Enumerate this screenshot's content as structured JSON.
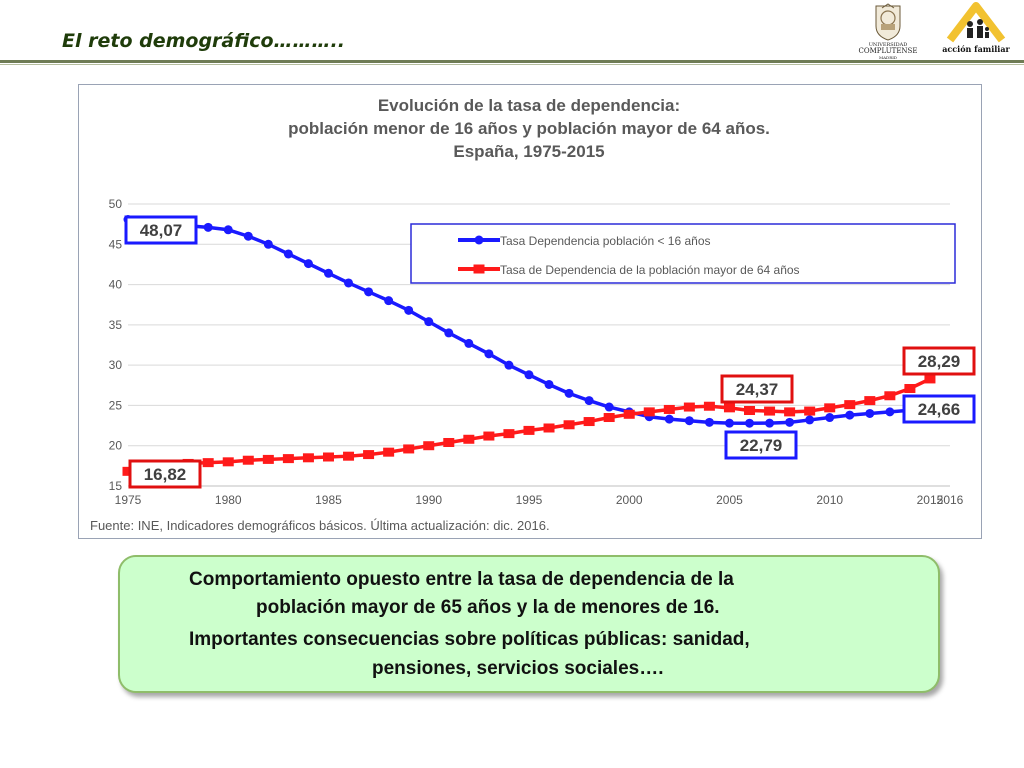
{
  "slide": {
    "title": "El reto demográfico……….."
  },
  "logos": {
    "ucm": {
      "line1": "UNIVERSIDAD",
      "line2": "COMPLUTENSE",
      "line3": "MADRID"
    },
    "accion_familiar": {
      "text": "acción familiar"
    }
  },
  "chart_data": {
    "type": "line",
    "title_lines": [
      "Evolución de la tasa de dependencia:",
      "población menor de 16 años y población mayor de 64 años.",
      "España, 1975-2015"
    ],
    "source": "Fuente: INE, Indicadores demográficos básicos. Última actualización: dic. 2016.",
    "x": [
      1975,
      1976,
      1977,
      1978,
      1979,
      1980,
      1981,
      1982,
      1983,
      1984,
      1985,
      1986,
      1987,
      1988,
      1989,
      1990,
      1991,
      1992,
      1993,
      1994,
      1995,
      1996,
      1997,
      1998,
      1999,
      2000,
      2001,
      2002,
      2003,
      2004,
      2005,
      2006,
      2007,
      2008,
      2009,
      2010,
      2011,
      2012,
      2013,
      2014,
      2015
    ],
    "x_tick_labels": [
      "1975",
      "1980",
      "1985",
      "1990",
      "1995",
      "2000",
      "2005",
      "2010",
      "2015",
      "2016"
    ],
    "y_tick_labels": [
      "15",
      "20",
      "25",
      "30",
      "35",
      "40",
      "45",
      "50"
    ],
    "ylim": [
      15,
      50
    ],
    "grid": true,
    "legend_position": "top-right",
    "series": [
      {
        "name": "Tasa Dependencia población < 16 años",
        "color": "#1a1aff",
        "values": [
          48.07,
          47.9,
          47.6,
          47.3,
          47.1,
          46.8,
          46.0,
          45.0,
          43.8,
          42.6,
          41.4,
          40.2,
          39.1,
          38.0,
          36.8,
          35.4,
          34.0,
          32.7,
          31.4,
          30.0,
          28.8,
          27.6,
          26.5,
          25.6,
          24.8,
          24.2,
          23.6,
          23.3,
          23.1,
          22.9,
          22.8,
          22.79,
          22.8,
          22.9,
          23.2,
          23.5,
          23.8,
          24.0,
          24.2,
          24.4,
          24.66
        ]
      },
      {
        "name": "Tasa de Dependencia de la población mayor de 64 años",
        "color": "#ff1a1a",
        "values": [
          16.82,
          17.2,
          17.5,
          17.8,
          17.9,
          18.0,
          18.2,
          18.3,
          18.4,
          18.5,
          18.6,
          18.7,
          18.9,
          19.2,
          19.6,
          20.0,
          20.4,
          20.8,
          21.2,
          21.5,
          21.9,
          22.2,
          22.6,
          23.0,
          23.5,
          23.9,
          24.2,
          24.5,
          24.8,
          24.9,
          24.7,
          24.37,
          24.3,
          24.2,
          24.3,
          24.7,
          25.1,
          25.6,
          26.2,
          27.1,
          28.29
        ]
      }
    ],
    "callouts": [
      {
        "text": "48,07",
        "series": 0,
        "border": "#1a1aff"
      },
      {
        "text": "16,82",
        "series": 1,
        "border": "#e01010"
      },
      {
        "text": "24,37",
        "series": 1,
        "border": "#e01010"
      },
      {
        "text": "22,79",
        "series": 0,
        "border": "#1a1aff"
      },
      {
        "text": "28,29",
        "series": 1,
        "border": "#e01010"
      },
      {
        "text": "24,66",
        "series": 0,
        "border": "#1a1aff"
      }
    ]
  },
  "note": {
    "line1": "Comportamiento opuesto entre la tasa de dependencia de la",
    "line2": "población mayor de 65 años y la de menores de 16.",
    "line3": "Importantes consecuencias sobre políticas públicas: sanidad,",
    "line4": "pensiones, servicios sociales…."
  }
}
